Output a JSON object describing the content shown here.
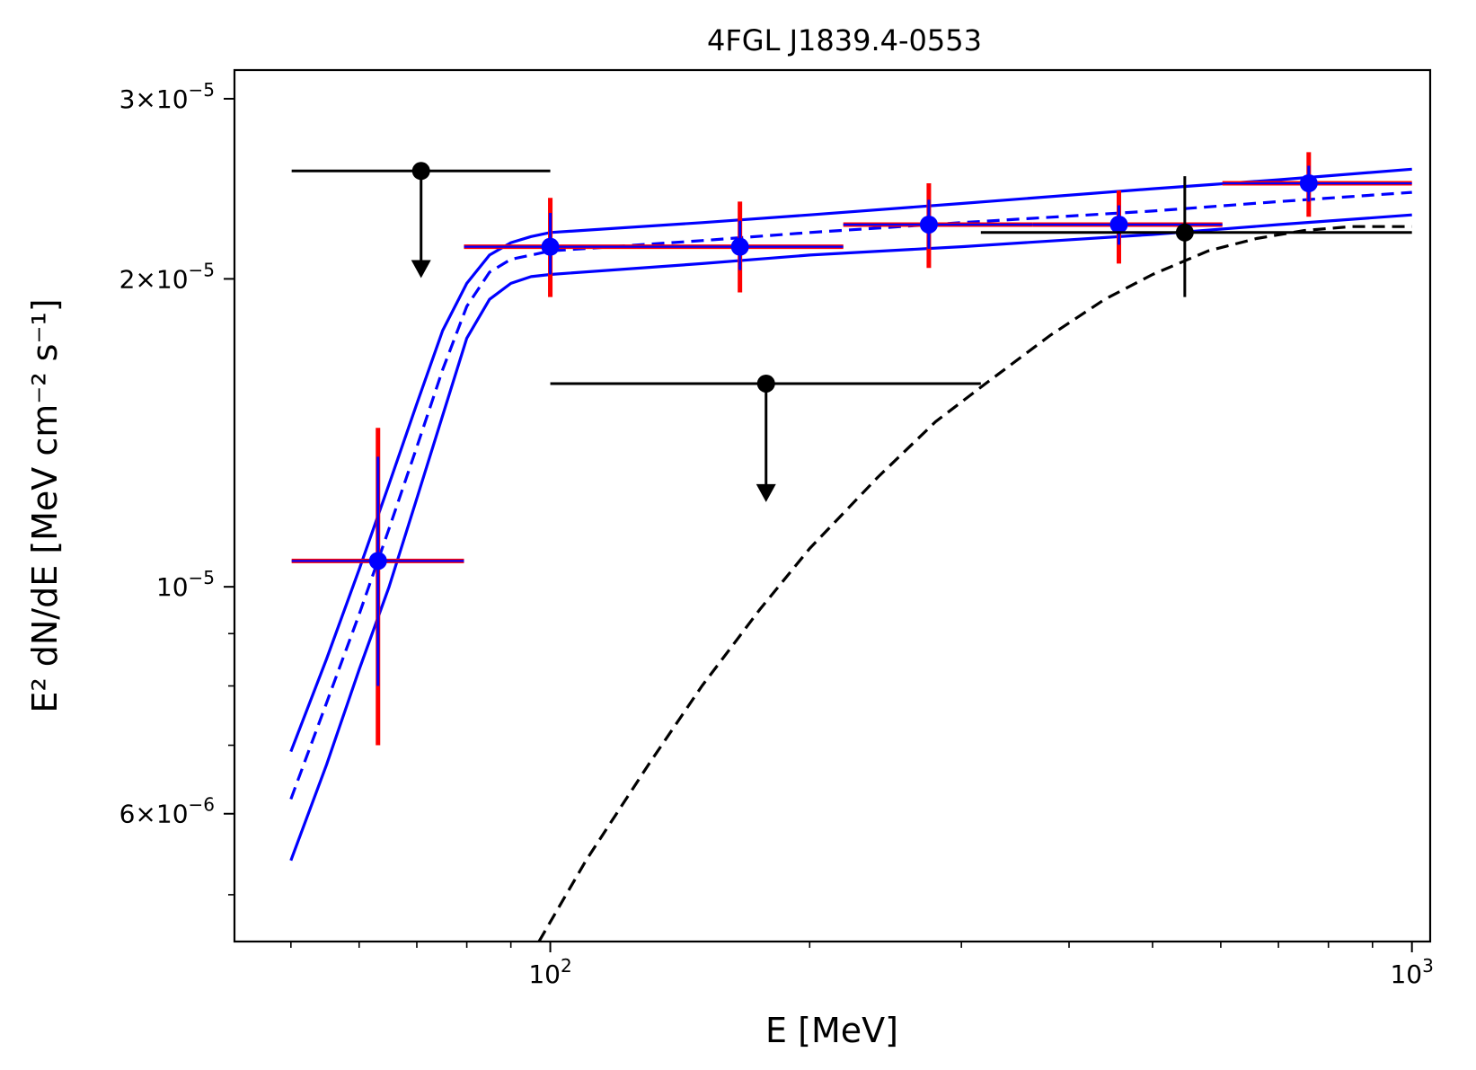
{
  "chart_data": {
    "type": "scatter",
    "title": "4FGL J1839.4-0553",
    "xlabel": "E [MeV]",
    "ylabel": "E² dN/dE [MeV cm⁻² s⁻¹]",
    "x_scale": "log",
    "y_scale": "log",
    "xlim": [
      43,
      1050
    ],
    "ylim": [
      4.5e-06,
      3.2e-05
    ],
    "grid": false,
    "x_ticks": [
      {
        "value": 100,
        "base": "10",
        "exp": "2"
      },
      {
        "value": 1000,
        "base": "10",
        "exp": "3"
      }
    ],
    "y_ticks": [
      {
        "value": 3e-05,
        "mant": "3×10",
        "exp": "−5"
      },
      {
        "value": 2e-05,
        "mant": "2×10",
        "exp": "−5"
      },
      {
        "value": 1e-05,
        "mant": "10",
        "exp": "−5"
      },
      {
        "value": 6e-06,
        "mant": "6×10",
        "exp": "−6"
      }
    ],
    "colors": {
      "primary": "#0000ff",
      "secondary": "#ff0000",
      "upper_limit": "#000000"
    },
    "blue_points": [
      {
        "x": 63.1,
        "y": 1.06e-05,
        "xlo": 50.1,
        "xhi": 79.4,
        "ylo_sys": 7e-06,
        "yhi_sys": 1.43e-05,
        "ylo_stat": 8e-06,
        "yhi_stat": 1.34e-05
      },
      {
        "x": 100,
        "y": 2.15e-05,
        "xlo": 79.4,
        "xhi": 125.9,
        "ylo_sys": 1.92e-05,
        "yhi_sys": 2.4e-05,
        "ylo_stat": 2.02e-05,
        "yhi_stat": 2.32e-05
      },
      {
        "x": 166,
        "y": 2.15e-05,
        "xlo": 125.9,
        "xhi": 218.8,
        "ylo_sys": 1.94e-05,
        "yhi_sys": 2.38e-05,
        "ylo_stat": 2.04e-05,
        "yhi_stat": 2.28e-05
      },
      {
        "x": 275,
        "y": 2.26e-05,
        "xlo": 218.8,
        "xhi": 363.1,
        "ylo_sys": 2.05e-05,
        "yhi_sys": 2.48e-05,
        "ylo_stat": 2.14e-05,
        "yhi_stat": 2.39e-05
      },
      {
        "x": 457,
        "y": 2.26e-05,
        "xlo": 363.1,
        "xhi": 602.6,
        "ylo_sys": 2.07e-05,
        "yhi_sys": 2.44e-05,
        "ylo_stat": 2.16e-05,
        "yhi_stat": 2.36e-05
      },
      {
        "x": 759,
        "y": 2.48e-05,
        "xlo": 602.6,
        "xhi": 1000,
        "ylo_sys": 2.3e-05,
        "yhi_sys": 2.66e-05,
        "ylo_stat": 2.38e-05,
        "yhi_stat": 2.58e-05
      }
    ],
    "upper_limits": [
      {
        "x": 70.8,
        "y": 2.55e-05,
        "xlo": 50.1,
        "xhi": 100,
        "arrow_to": 2.02e-05
      },
      {
        "x": 178,
        "y": 1.58e-05,
        "xlo": 100,
        "xhi": 316,
        "arrow_to": 1.22e-05
      }
    ],
    "black_points": [
      {
        "x": 545,
        "y": 2.22e-05,
        "xlo": 316,
        "xhi": 1000,
        "ylo": 1.92e-05,
        "yhi": 2.52e-05
      }
    ],
    "model_best": {
      "x": [
        50,
        55,
        60,
        65,
        70,
        75,
        80,
        85,
        90,
        95,
        100,
        150,
        200,
        300,
        500,
        700,
        1000
      ],
      "y": [
        6.2e-06,
        7.7e-06,
        9.4e-06,
        1.14e-05,
        1.37e-05,
        1.63e-05,
        1.88e-05,
        2.03e-05,
        2.09e-05,
        2.11e-05,
        2.13e-05,
        2.18e-05,
        2.22e-05,
        2.27e-05,
        2.33e-05,
        2.38e-05,
        2.43e-05
      ]
    },
    "model_upper": {
      "x": [
        50,
        55,
        60,
        65,
        70,
        75,
        80,
        85,
        90,
        95,
        100,
        150,
        200,
        300,
        500,
        700,
        1000
      ],
      "y": [
        6.9e-06,
        8.5e-06,
        1.04e-05,
        1.26e-05,
        1.51e-05,
        1.78e-05,
        1.98e-05,
        2.11e-05,
        2.17e-05,
        2.2e-05,
        2.22e-05,
        2.27e-05,
        2.31e-05,
        2.37e-05,
        2.45e-05,
        2.5e-05,
        2.56e-05
      ]
    },
    "model_lower": {
      "x": [
        50,
        55,
        60,
        65,
        70,
        75,
        80,
        85,
        90,
        95,
        100,
        150,
        200,
        300,
        500,
        700,
        1000
      ],
      "y": [
        5.4e-06,
        6.7e-06,
        8.3e-06,
        1e-05,
        1.22e-05,
        1.47e-05,
        1.75e-05,
        1.91e-05,
        1.98e-05,
        2.01e-05,
        2.02e-05,
        2.07e-05,
        2.11e-05,
        2.15e-05,
        2.21e-05,
        2.26e-05,
        2.31e-05
      ]
    },
    "model_black_dashed": {
      "x": [
        97,
        110,
        130,
        150,
        175,
        200,
        240,
        280,
        320,
        380,
        440,
        500,
        580,
        660,
        750,
        850,
        1000
      ],
      "y": [
        4.5e-06,
        5.4e-06,
        6.7e-06,
        8e-06,
        9.5e-06,
        1.09e-05,
        1.28e-05,
        1.45e-05,
        1.58e-05,
        1.76e-05,
        1.91e-05,
        2.02e-05,
        2.13e-05,
        2.19e-05,
        2.23e-05,
        2.25e-05,
        2.25e-05
      ]
    }
  }
}
